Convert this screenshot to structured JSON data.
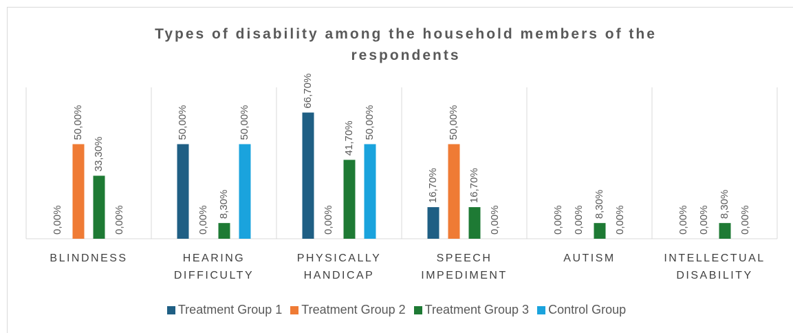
{
  "chart_data": {
    "type": "bar",
    "title": "Types of disability among the household members of the respondents",
    "categories": [
      "BLINDNESS",
      "HEARING DIFFICULTY",
      "PHYSICALLY HANDICAP",
      "SPEECH IMPEDIMENT",
      "AUTISM",
      "INTELLECTUAL DISABILITY"
    ],
    "ylim": [
      0,
      80
    ],
    "series": [
      {
        "name": "Treatment Group 1",
        "color": "#1f5f84",
        "values": [
          0,
          50,
          66.7,
          16.7,
          0,
          0
        ],
        "value_labels": [
          "0,00%",
          "50,00%",
          "66,70%",
          "16,70%",
          "0,00%",
          "0,00%"
        ]
      },
      {
        "name": "Treatment Group 2",
        "color": "#ef7b35",
        "values": [
          50,
          0,
          0,
          50,
          0,
          0
        ],
        "value_labels": [
          "50,00%",
          "0,00%",
          "0,00%",
          "50,00%",
          "0,00%",
          "0,00%"
        ]
      },
      {
        "name": "Treatment Group 3",
        "color": "#1e7a34",
        "values": [
          33.3,
          8.3,
          41.7,
          16.7,
          8.3,
          8.3
        ],
        "value_labels": [
          "33,30%",
          "8,30%",
          "41,70%",
          "16,70%",
          "8,30%",
          "8,30%"
        ]
      },
      {
        "name": "Control Group",
        "color": "#1aa3dd",
        "values": [
          0,
          50,
          50,
          0,
          0,
          0
        ],
        "value_labels": [
          "0,00%",
          "50,00%",
          "50,00%",
          "0,00%",
          "0,00%",
          "0,00%"
        ]
      }
    ],
    "legend": "bottom"
  }
}
